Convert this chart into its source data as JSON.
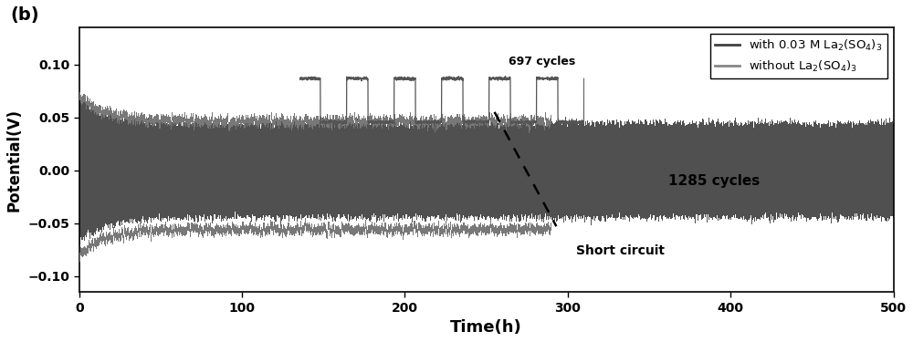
{
  "title_label": "(b)",
  "xlabel": "Time(h)",
  "ylabel": "Potential(V)",
  "xlim": [
    0,
    500
  ],
  "ylim": [
    -0.115,
    0.135
  ],
  "yticks": [
    -0.1,
    -0.05,
    0.0,
    0.05,
    0.1
  ],
  "xticks": [
    0,
    100,
    200,
    300,
    400,
    500
  ],
  "dark_color": "#505050",
  "medium_color": "#606060",
  "bg_color": "#ffffff",
  "legend_label1": "with 0.03 M La$_2$(SO$_4$)$_3$",
  "legend_label2": "without La$_2$(SO$_4$)$_3$",
  "annotation_cycles_697": "697 cycles",
  "annotation_cycles_1285": "1285 cycles",
  "annotation_short": "Short circuit",
  "short_circuit_time": 290
}
